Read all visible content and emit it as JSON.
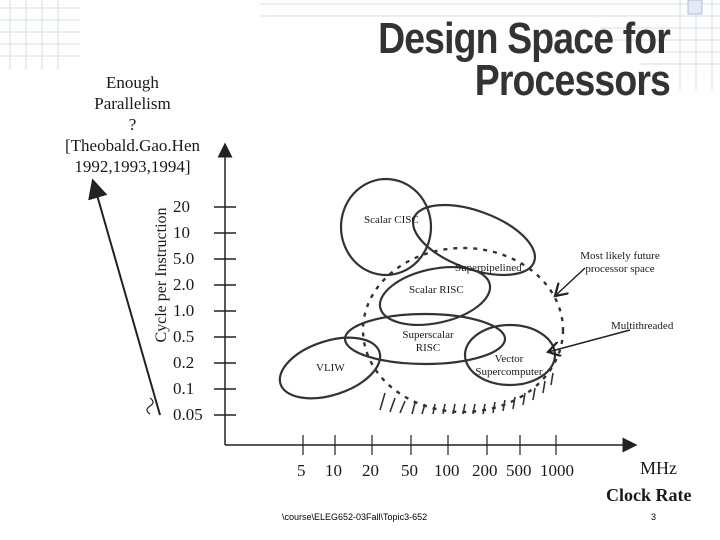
{
  "title": "Design Space for Processors",
  "parallelism_note": [
    "Enough",
    "Parallelism",
    "?",
    "[Theobald.Gao.Hen",
    "1992,1993,1994]"
  ],
  "y_axis": {
    "label": "Cycle per Instruction",
    "ticks": [
      "20",
      "10",
      "5.0",
      "2.0",
      "1.0",
      "0.5",
      "0.2",
      "0.1",
      "0.05"
    ]
  },
  "x_axis": {
    "ticks": [
      "5",
      "10",
      "20",
      "50",
      "100",
      "200",
      "500",
      "1000"
    ],
    "unit": "MHz",
    "label": "Clock Rate"
  },
  "regions": {
    "scalar_cisc": "Scalar CISC",
    "superpipelined": "Superpipelined",
    "scalar_risc": "Scalar RISC",
    "superscalar_risc": "Superscalar RISC",
    "vliw": "VLIW",
    "vector": "Vector Supercomputer",
    "future": "Most likely future processor space",
    "multithreaded": "Multithreaded"
  },
  "footer": "\\course\\ELEG652-03Fall\\Topic3-652",
  "page_number": "3"
}
